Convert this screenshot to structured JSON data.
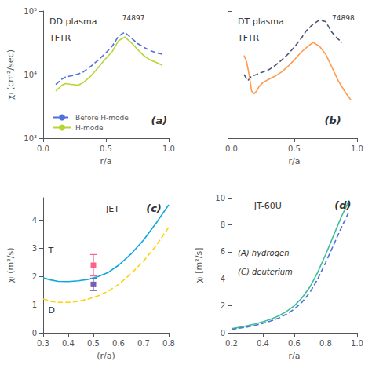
{
  "chart_data": [
    {
      "type": "line",
      "log": "y",
      "grid": false,
      "xlabel": "r/a",
      "ylabel": "χᵢ (cm²/sec)",
      "xlim": [
        0.0,
        1.0
      ],
      "xticks": [
        {
          "value": 0,
          "label": "0.0"
        },
        {
          "value": 0.5,
          "label": "0.5"
        },
        {
          "value": 1,
          "label": "1.0"
        }
      ],
      "ylim": [
        1000,
        100000
      ],
      "yticks": [
        {
          "value": 1000,
          "label": "10³"
        },
        {
          "value": 10000,
          "label": "10⁴"
        },
        {
          "value": 100000,
          "label": "10⁵"
        }
      ],
      "legend": "lower left",
      "annotations": [
        "DD plasma",
        "TFTR",
        "74897",
        "(a)"
      ],
      "series": [
        {
          "name": "Before H-mode",
          "line_style": "dashed",
          "x": [
            0.1,
            0.15,
            0.18,
            0.22,
            0.25,
            0.28,
            0.32,
            0.38,
            0.44,
            0.5,
            0.55,
            0.6,
            0.63,
            0.65,
            0.7,
            0.75,
            0.8,
            0.85,
            0.9,
            0.95
          ],
          "values": [
            7000,
            8500,
            9200,
            9500,
            9800,
            10200,
            11000,
            13500,
            17000,
            22000,
            28000,
            40000,
            44000,
            46000,
            38000,
            31000,
            27000,
            24000,
            22000,
            21000
          ]
        },
        {
          "name": "H-mode",
          "line_style": "solid",
          "x": [
            0.1,
            0.15,
            0.18,
            0.22,
            0.25,
            0.28,
            0.32,
            0.38,
            0.44,
            0.5,
            0.55,
            0.6,
            0.63,
            0.65,
            0.7,
            0.75,
            0.8,
            0.85,
            0.9,
            0.95
          ],
          "values": [
            5500,
            6800,
            7200,
            7000,
            6900,
            6800,
            7500,
            9500,
            13000,
            18000,
            23000,
            34000,
            37000,
            39000,
            32000,
            25000,
            20000,
            17000,
            15500,
            14000
          ]
        }
      ]
    },
    {
      "type": "line",
      "log": "y",
      "grid": false,
      "tick_labels": "x",
      "xlabel": "r/a",
      "xlim": [
        0.0,
        1.0
      ],
      "xticks": [
        {
          "value": 0,
          "label": "0.0"
        },
        {
          "value": 0.5,
          "label": "0.5"
        },
        {
          "value": 1,
          "label": "1.0"
        }
      ],
      "ylim": [
        1000,
        100000
      ],
      "yticks": [
        1000,
        10000,
        100000
      ],
      "annotations": [
        "DT plasma",
        "TFTR",
        "74898",
        "(b)"
      ],
      "series": [
        {
          "line_style": "dashed",
          "x": [
            0.1,
            0.13,
            0.16,
            0.2,
            0.25,
            0.3,
            0.35,
            0.4,
            0.45,
            0.5,
            0.55,
            0.6,
            0.65,
            0.7,
            0.75,
            0.8,
            0.85,
            0.88
          ],
          "values": [
            10000,
            8000,
            9500,
            10000,
            11000,
            12000,
            14000,
            17000,
            21000,
            27000,
            36000,
            50000,
            62000,
            72000,
            68000,
            46000,
            36000,
            32000
          ]
        },
        {
          "line_style": "solid",
          "x": [
            0.1,
            0.12,
            0.14,
            0.16,
            0.18,
            0.2,
            0.22,
            0.25,
            0.3,
            0.35,
            0.4,
            0.45,
            0.5,
            0.55,
            0.6,
            0.63,
            0.65,
            0.7,
            0.75,
            0.8,
            0.85,
            0.9,
            0.95
          ],
          "values": [
            20000,
            16000,
            10000,
            5500,
            5000,
            5500,
            6500,
            7500,
            8500,
            9500,
            11000,
            13500,
            17000,
            22000,
            27000,
            30000,
            32000,
            28000,
            21000,
            13000,
            8000,
            5500,
            4000
          ]
        }
      ]
    },
    {
      "type": "line",
      "grid": false,
      "xlabel": "(r/a)",
      "ylabel": "χᵢ (m²/s)",
      "xlim": [
        0.3,
        0.8
      ],
      "xticks": [
        0.3,
        0.4,
        0.5,
        0.6,
        0.7,
        0.8
      ],
      "ylim": [
        0,
        4.8
      ],
      "yticks": [
        0,
        1,
        2,
        3,
        4
      ],
      "annotations": [
        "JET",
        "(c)",
        "T",
        "D"
      ],
      "series": [
        {
          "type": "line",
          "line_style": "solid",
          "x": [
            0.3,
            0.33,
            0.36,
            0.4,
            0.44,
            0.48,
            0.52,
            0.56,
            0.6,
            0.65,
            0.7,
            0.75,
            0.8
          ],
          "values": [
            1.95,
            1.88,
            1.83,
            1.82,
            1.85,
            1.9,
            2.0,
            2.15,
            2.4,
            2.8,
            3.3,
            3.9,
            4.55
          ]
        },
        {
          "type": "line",
          "line_style": "dashed",
          "x": [
            0.3,
            0.33,
            0.36,
            0.4,
            0.44,
            0.48,
            0.52,
            0.56,
            0.6,
            0.65,
            0.7,
            0.75,
            0.8
          ],
          "values": [
            1.2,
            1.12,
            1.08,
            1.08,
            1.12,
            1.2,
            1.32,
            1.48,
            1.72,
            2.1,
            2.55,
            3.1,
            3.75
          ]
        },
        {
          "type": "scatter",
          "marker": "square",
          "x": [
            0.5
          ],
          "values": [
            2.4
          ],
          "yerr": [
            0.38
          ]
        },
        {
          "type": "scatter",
          "marker": "square",
          "x": [
            0.5
          ],
          "values": [
            1.72
          ],
          "yerr": [
            0.22
          ]
        }
      ]
    },
    {
      "type": "line",
      "grid": false,
      "xlabel": "r/a",
      "ylabel": "χᵢ [m²/s]",
      "xlim": [
        0.2,
        1.0
      ],
      "xticks": [
        0.2,
        0.4,
        0.6,
        0.8,
        {
          "value": 1,
          "label": "1.0"
        }
      ],
      "ylim": [
        0,
        10
      ],
      "yticks": [
        0,
        2,
        4,
        6,
        8,
        10
      ],
      "annotations": [
        "JT-60U",
        "(d)",
        "(A) hydrogen",
        "(C) deuterium"
      ],
      "series": [
        {
          "line_style": "solid",
          "x": [
            0.2,
            0.25,
            0.3,
            0.35,
            0.4,
            0.45,
            0.5,
            0.55,
            0.6,
            0.65,
            0.7,
            0.75,
            0.8,
            0.85,
            0.9,
            0.95
          ],
          "values": [
            0.3,
            0.4,
            0.52,
            0.65,
            0.82,
            1.0,
            1.25,
            1.58,
            2.0,
            2.6,
            3.4,
            4.5,
            5.8,
            7.2,
            8.6,
            9.8
          ]
        },
        {
          "line_style": "dashed",
          "x": [
            0.2,
            0.25,
            0.3,
            0.35,
            0.4,
            0.45,
            0.5,
            0.55,
            0.6,
            0.65,
            0.7,
            0.75,
            0.8,
            0.85,
            0.9,
            0.95
          ],
          "values": [
            0.25,
            0.33,
            0.43,
            0.55,
            0.7,
            0.87,
            1.08,
            1.38,
            1.75,
            2.28,
            3.0,
            4.0,
            5.2,
            6.5,
            7.8,
            9.0
          ]
        }
      ]
    }
  ]
}
